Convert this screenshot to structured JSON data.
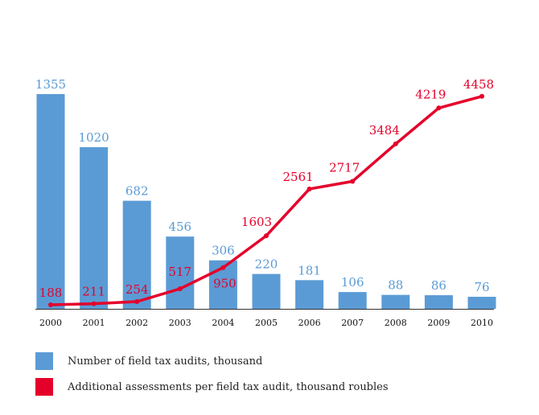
{
  "colors": {
    "bar": "#5b9bd5",
    "bar_label": "#5b9bd5",
    "line": "#e4002b",
    "line_label": "#e4002b",
    "axis": "#333333",
    "tick_text": "#111111"
  },
  "chart_data": {
    "type": "bar",
    "categories": [
      "2000",
      "2001",
      "2002",
      "2003",
      "2004",
      "2005",
      "2006",
      "2007",
      "2008",
      "2009",
      "2010"
    ],
    "series": [
      {
        "name": "Number of field tax audits, thousand",
        "type": "bar",
        "values": [
          1355,
          1020,
          682,
          456,
          306,
          220,
          181,
          106,
          88,
          86,
          76
        ]
      },
      {
        "name": "Additional assessments per field tax audit, thousand roubles",
        "type": "line",
        "values": [
          188,
          211,
          254,
          517,
          950,
          1603,
          2561,
          2717,
          3484,
          4219,
          4458
        ]
      }
    ],
    "title": "",
    "xlabel": "",
    "ylabel": "",
    "grid": false,
    "legend_position": "bottom-left"
  },
  "legend": [
    {
      "label": "Number of field tax audits, thousand",
      "color": "#5b9bd5"
    },
    {
      "label": "Additional assessments per field tax audit, thousand roubles",
      "color": "#e4002b"
    }
  ]
}
